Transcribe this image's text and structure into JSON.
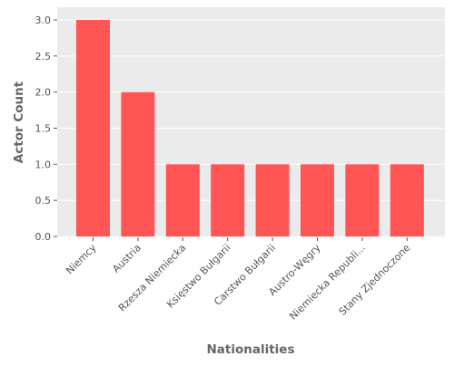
{
  "chart_data": {
    "type": "bar",
    "title": "",
    "xlabel": "Nationalities",
    "ylabel": "Actor Count",
    "categories": [
      "Niemcy",
      "Austria",
      "Rzesza Niemiecka",
      "Księstwo Bułgarii",
      "Carstwo Bułgarii",
      "Austro-Węgry",
      "Niemiecka Republi...",
      "Stany Zjednoczone"
    ],
    "values": [
      3,
      2,
      1,
      1,
      1,
      1,
      1,
      1
    ],
    "ylim": [
      0,
      3.0
    ],
    "yticks": [
      "0.0",
      "0.5",
      "1.0",
      "1.5",
      "2.0",
      "2.5",
      "3.0"
    ],
    "grid": true,
    "colors": {
      "bar": "#ff5555",
      "plot_background": "#ebebeb",
      "grid": "#ffffff"
    }
  }
}
